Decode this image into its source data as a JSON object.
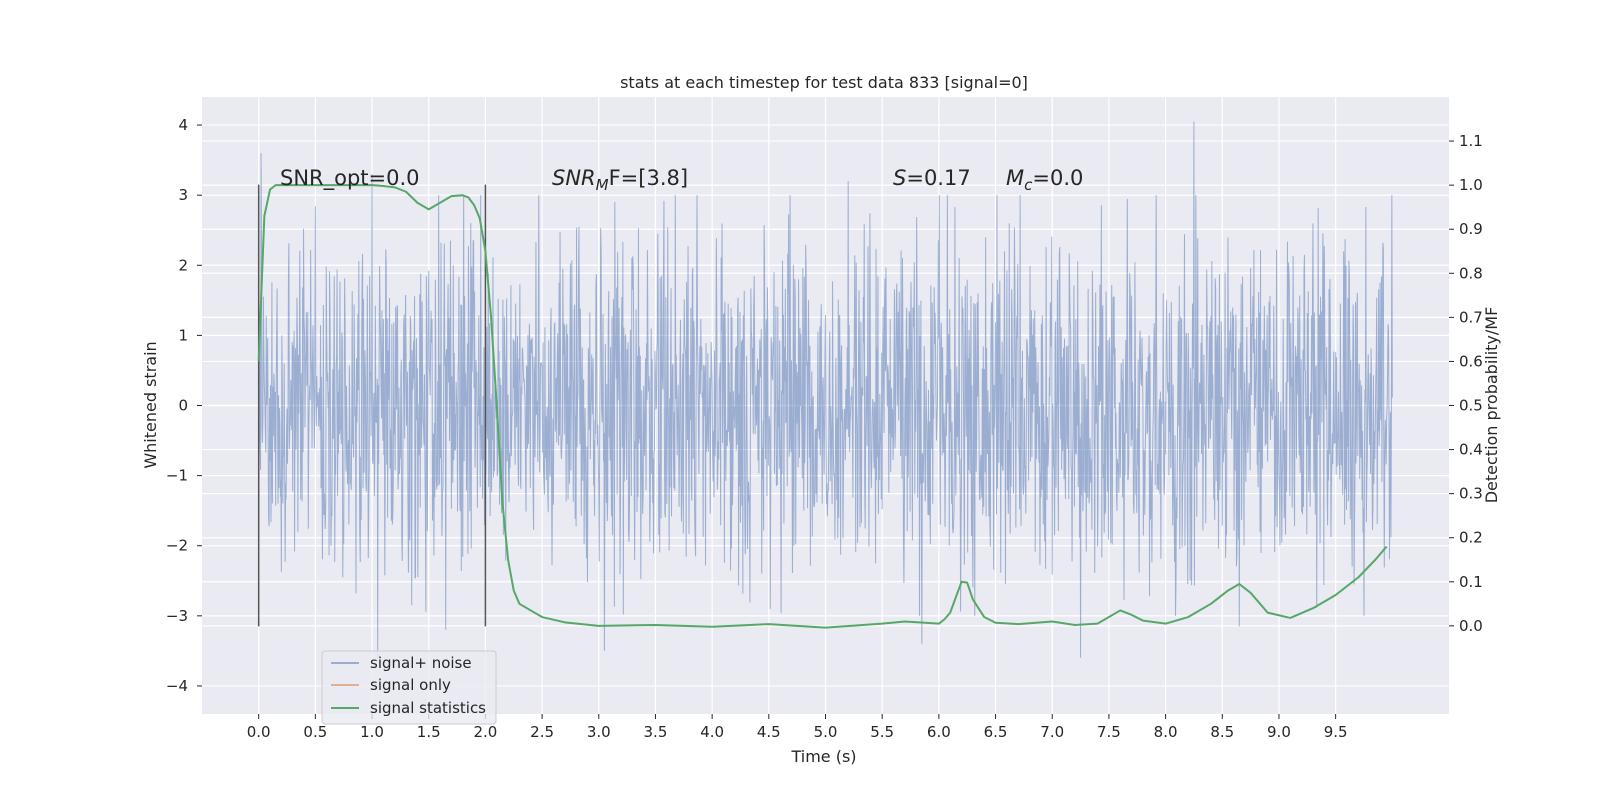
{
  "chart_data": {
    "type": "line",
    "title": "stats at each timestep for test data 833 [signal=0]",
    "xlabel": "Time (s)",
    "ylabel_left": "Whitened strain",
    "ylabel_right": "Detection probability/MF",
    "xlim": [
      -0.5,
      10.5
    ],
    "ylim_left": [
      -4.4,
      4.4
    ],
    "ylim_right": [
      -0.2,
      1.2
    ],
    "x_ticks": [
      "0.0",
      "0.5",
      "1.0",
      "1.5",
      "2.0",
      "2.5",
      "3.0",
      "3.5",
      "4.0",
      "4.5",
      "5.0",
      "5.5",
      "6.0",
      "6.5",
      "7.0",
      "7.5",
      "8.0",
      "8.5",
      "9.0",
      "9.5"
    ],
    "y_ticks_left": [
      "4",
      "3",
      "2",
      "1",
      "0",
      "−1",
      "−2",
      "−3",
      "−4"
    ],
    "y_ticks_right": [
      "1.1",
      "1.0",
      "0.9",
      "0.8",
      "0.7",
      "0.6",
      "0.5",
      "0.4",
      "0.3",
      "0.2",
      "0.1",
      "0.0"
    ],
    "grid": true,
    "legend_position": "lower-left",
    "annotations": {
      "snr_opt": "SNR_opt=0.0",
      "snr_mf_prefix": "SNR",
      "snr_mf_sub": "M",
      "snr_mf_suffix": "F=[3.8]",
      "s_prefix": "S",
      "s_value": "=0.17",
      "mc_prefix": "M",
      "mc_sub": "c",
      "mc_value": "=0.0"
    },
    "window_markers_x": [
      0.0,
      2.0
    ],
    "series": [
      {
        "name": "signal+ noise",
        "color": "#4c72b0",
        "alpha": 0.5,
        "x_range": [
          0.0,
          10.0
        ],
        "typical_band": [
          -1.9,
          1.9
        ],
        "extrema": [
          {
            "x": 0.02,
            "y": 3.6
          },
          {
            "x": 1.0,
            "y": 3.3
          },
          {
            "x": 1.05,
            "y": -3.6
          },
          {
            "x": 1.65,
            "y": -3.2
          },
          {
            "x": 3.05,
            "y": -3.5
          },
          {
            "x": 5.2,
            "y": 3.2
          },
          {
            "x": 5.85,
            "y": -3.4
          },
          {
            "x": 7.25,
            "y": -3.6
          },
          {
            "x": 8.25,
            "y": 4.05
          },
          {
            "x": 8.65,
            "y": -3.15
          },
          {
            "x": 9.75,
            "y": -3.0
          }
        ]
      },
      {
        "name": "signal only",
        "color": "#dd8452",
        "values": []
      },
      {
        "name": "signal statistics",
        "color": "#55a868",
        "axis": "right",
        "x": [
          0.0,
          0.05,
          0.1,
          0.15,
          0.2,
          0.3,
          0.5,
          0.8,
          1.0,
          1.1,
          1.2,
          1.3,
          1.4,
          1.5,
          1.6,
          1.7,
          1.8,
          1.85,
          1.9,
          1.95,
          2.0,
          2.05,
          2.1,
          2.15,
          2.2,
          2.25,
          2.3,
          2.4,
          2.5,
          2.7,
          3.0,
          3.5,
          4.0,
          4.5,
          5.0,
          5.5,
          5.7,
          6.0,
          6.05,
          6.1,
          6.2,
          6.25,
          6.3,
          6.4,
          6.5,
          6.7,
          7.0,
          7.2,
          7.4,
          7.6,
          7.7,
          7.8,
          8.0,
          8.2,
          8.4,
          8.55,
          8.65,
          8.75,
          8.9,
          9.1,
          9.3,
          9.5,
          9.7,
          9.85,
          9.95
        ],
        "y": [
          0.6,
          0.93,
          0.99,
          1.0,
          1.0,
          1.0,
          1.0,
          1.0,
          1.0,
          0.998,
          0.995,
          0.985,
          0.96,
          0.945,
          0.96,
          0.975,
          0.977,
          0.972,
          0.955,
          0.925,
          0.85,
          0.7,
          0.5,
          0.28,
          0.15,
          0.08,
          0.05,
          0.035,
          0.02,
          0.008,
          0.0,
          0.002,
          -0.002,
          0.004,
          -0.004,
          0.005,
          0.01,
          0.005,
          0.015,
          0.03,
          0.1,
          0.098,
          0.06,
          0.02,
          0.007,
          0.004,
          0.01,
          0.002,
          0.005,
          0.035,
          0.025,
          0.012,
          0.005,
          0.02,
          0.05,
          0.08,
          0.095,
          0.075,
          0.03,
          0.018,
          0.04,
          0.07,
          0.11,
          0.15,
          0.18
        ]
      }
    ]
  }
}
